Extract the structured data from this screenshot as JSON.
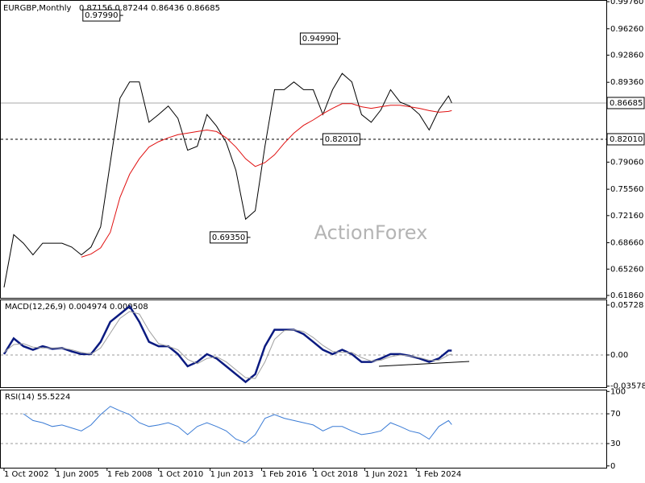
{
  "chart_data": [
    {
      "type": "line",
      "title": "EURGBP,Monthly",
      "subtitle": "0.87156 0.87244 0.86436 0.86685",
      "watermark": "ActionForex",
      "x": [
        "2002-10",
        "2003-04",
        "2003-10",
        "2004-04",
        "2004-10",
        "2005-04",
        "2005-10",
        "2006-04",
        "2006-10",
        "2007-04",
        "2007-10",
        "2008-04",
        "2008-10",
        "2009-04",
        "2009-10",
        "2010-04",
        "2010-10",
        "2011-04",
        "2011-10",
        "2012-04",
        "2012-10",
        "2013-04",
        "2013-10",
        "2014-04",
        "2014-10",
        "2015-04",
        "2015-10",
        "2016-04",
        "2016-10",
        "2017-04",
        "2017-10",
        "2018-04",
        "2018-10",
        "2019-04",
        "2019-10",
        "2020-04",
        "2020-10",
        "2021-04",
        "2021-10",
        "2022-04",
        "2022-10",
        "2023-04",
        "2023-10",
        "2024-04",
        "2024-10",
        "2025-04",
        "2025-10",
        "2025-12"
      ],
      "xlim": [
        "2002-08",
        "2033-12"
      ],
      "series": [
        {
          "color": "#000000",
          "values": [
            0.629,
            0.697,
            0.686,
            0.671,
            0.686,
            0.686,
            0.686,
            0.681,
            0.671,
            0.681,
            0.707,
            0.79,
            0.873,
            0.894,
            0.894,
            0.842,
            0.852,
            0.863,
            0.847,
            0.806,
            0.811,
            0.852,
            0.837,
            0.816,
            0.78,
            0.717,
            0.728,
            0.811,
            0.884,
            0.884,
            0.894,
            0.884,
            0.884,
            0.852,
            0.884,
            0.905,
            0.894,
            0.852,
            0.842,
            0.858,
            0.884,
            0.868,
            0.863,
            0.852,
            0.832,
            0.858,
            0.876,
            0.8669
          ]
        },
        {
          "color": "#e01010",
          "values": [
            null,
            null,
            null,
            null,
            null,
            null,
            null,
            null,
            0.668,
            0.672,
            0.68,
            0.7,
            0.745,
            0.775,
            0.795,
            0.81,
            0.817,
            0.822,
            0.826,
            0.828,
            0.83,
            0.832,
            0.83,
            0.822,
            0.81,
            0.795,
            0.785,
            0.79,
            0.8,
            0.815,
            0.828,
            0.838,
            0.845,
            0.853,
            0.86,
            0.866,
            0.866,
            0.862,
            0.86,
            0.862,
            0.864,
            0.864,
            0.862,
            0.86,
            0.857,
            0.855,
            0.856,
            0.857
          ]
        }
      ],
      "ylim": [
        0.6155,
        0.9987
      ],
      "yticks": [
        {
          "value": 0.9976,
          "label": "0.99760"
        },
        {
          "value": 0.9626,
          "label": "0.96260"
        },
        {
          "value": 0.9286,
          "label": "0.92860"
        },
        {
          "value": 0.8936,
          "label": "0.89360"
        },
        {
          "value": 0.7906,
          "label": "0.79060"
        },
        {
          "value": 0.7556,
          "label": "0.75560"
        },
        {
          "value": 0.7216,
          "label": "0.72160"
        },
        {
          "value": 0.6866,
          "label": "0.68660"
        },
        {
          "value": 0.6526,
          "label": "0.65260"
        },
        {
          "value": 0.6186,
          "label": "0.61860"
        }
      ],
      "reference_lines": [
        {
          "value": 0.86685,
          "label": "0.86685",
          "style": "solid"
        },
        {
          "value": 0.8201,
          "label": "0.82010",
          "style": "dashed"
        }
      ],
      "annotations": [
        {
          "text": "0.97990",
          "x": "2008-12",
          "value": 0.9799
        },
        {
          "text": "0.94990",
          "x": "2020-03",
          "value": 0.9499
        },
        {
          "text": "0.82010",
          "x": "2021-05",
          "value": 0.8201
        },
        {
          "text": "0.69350",
          "x": "2015-07",
          "value": 0.6935
        }
      ]
    },
    {
      "type": "line",
      "title": "MACD(12,26,9) 0.004974 0.000508",
      "x": [
        "2002-10",
        "2003-04",
        "2003-10",
        "2004-04",
        "2004-10",
        "2005-04",
        "2005-10",
        "2006-04",
        "2006-10",
        "2007-04",
        "2007-10",
        "2008-04",
        "2008-10",
        "2009-04",
        "2009-10",
        "2010-04",
        "2010-10",
        "2011-04",
        "2011-10",
        "2012-04",
        "2012-10",
        "2013-04",
        "2013-10",
        "2014-04",
        "2014-10",
        "2015-04",
        "2015-10",
        "2016-04",
        "2016-10",
        "2017-04",
        "2017-10",
        "2018-04",
        "2018-10",
        "2019-04",
        "2019-10",
        "2020-04",
        "2020-10",
        "2021-04",
        "2021-10",
        "2022-04",
        "2022-10",
        "2023-04",
        "2023-10",
        "2024-04",
        "2024-10",
        "2025-04",
        "2025-10",
        "2025-12"
      ],
      "xlim": [
        "2002-08",
        "2033-12"
      ],
      "series": [
        {
          "color": "#0a1a80",
          "values": [
            0.001,
            0.019,
            0.01,
            0.006,
            0.01,
            0.007,
            0.008,
            0.004,
            0.001,
            0.001,
            0.015,
            0.038,
            0.047,
            0.056,
            0.038,
            0.015,
            0.01,
            0.01,
            0.001,
            -0.013,
            -0.008,
            0.001,
            -0.004,
            -0.013,
            -0.022,
            -0.031,
            -0.022,
            0.01,
            0.029,
            0.029,
            0.029,
            0.024,
            0.015,
            0.006,
            0.001,
            0.006,
            0.001,
            -0.008,
            -0.008,
            -0.004,
            0.001,
            0.001,
            -0.001,
            -0.004,
            -0.008,
            -0.004,
            0.005,
            0.005
          ]
        },
        {
          "color": "#a0a0a0",
          "values": [
            0.003,
            0.012,
            0.013,
            0.009,
            0.008,
            0.008,
            0.008,
            0.006,
            0.003,
            0.001,
            0.008,
            0.025,
            0.042,
            0.05,
            0.047,
            0.028,
            0.013,
            0.01,
            0.006,
            -0.005,
            -0.01,
            -0.004,
            -0.002,
            -0.008,
            -0.017,
            -0.026,
            -0.027,
            -0.008,
            0.018,
            0.028,
            0.029,
            0.027,
            0.02,
            0.011,
            0.004,
            0.003,
            0.003,
            -0.003,
            -0.007,
            -0.006,
            -0.002,
            0,
            -0.001,
            -0.003,
            -0.006,
            -0.006,
            0,
            0.001
          ]
        }
      ],
      "ylim": [
        -0.037,
        0.0628
      ],
      "yticks": [
        0.05728,
        {
          "value": 0,
          "label": "0.00"
        },
        -0.035783
      ],
      "reference_lines": [
        {
          "value": 0,
          "style": "dashed"
        }
      ]
    },
    {
      "type": "line",
      "title": "RSI(14) 55.5224",
      "x": [
        "2002-10",
        "2003-04",
        "2003-10",
        "2004-04",
        "2004-10",
        "2005-04",
        "2005-10",
        "2006-04",
        "2006-10",
        "2007-04",
        "2007-10",
        "2008-04",
        "2008-10",
        "2009-04",
        "2009-10",
        "2010-04",
        "2010-10",
        "2011-04",
        "2011-10",
        "2012-04",
        "2012-10",
        "2013-04",
        "2013-10",
        "2014-04",
        "2014-10",
        "2015-04",
        "2015-10",
        "2016-04",
        "2016-10",
        "2017-04",
        "2017-10",
        "2018-04",
        "2018-10",
        "2019-04",
        "2019-10",
        "2020-04",
        "2020-10",
        "2021-04",
        "2021-10",
        "2022-04",
        "2022-10",
        "2023-04",
        "2023-10",
        "2024-04",
        "2024-10",
        "2025-04",
        "2025-10",
        "2025-12"
      ],
      "xlim": [
        "2002-08",
        "2033-12"
      ],
      "series": [
        {
          "color": "#3a7bd5",
          "values": [
            null,
            null,
            70,
            61,
            58,
            53,
            55,
            51,
            47,
            55,
            69,
            80,
            74,
            69,
            58,
            53,
            55,
            58,
            53,
            42,
            53,
            58,
            53,
            47,
            36,
            31,
            42,
            64,
            69,
            64,
            61,
            58,
            55,
            47,
            53,
            53,
            47,
            42,
            44,
            47,
            58,
            53,
            47,
            44,
            36,
            53,
            61,
            55.52
          ]
        }
      ],
      "ylim": [
        -2.4,
        101.4
      ],
      "yticks": [
        100,
        70,
        30,
        0
      ],
      "reference_lines": [
        {
          "value": 70,
          "style": "dashed"
        },
        {
          "value": 30,
          "style": "dashed"
        }
      ],
      "xticks": [
        {
          "value": "2002-10",
          "label": "1 Oct 2002"
        },
        {
          "value": "2005-06",
          "label": "1 Jun 2005"
        },
        {
          "value": "2008-02",
          "label": "1 Feb 2008"
        },
        {
          "value": "2010-10",
          "label": "1 Oct 2010"
        },
        {
          "value": "2013-06",
          "label": "1 Jun 2013"
        },
        {
          "value": "2016-02",
          "label": "1 Feb 2016"
        },
        {
          "value": "2018-10",
          "label": "1 Oct 2018"
        },
        {
          "value": "2021-06",
          "label": "1 Jun 2021"
        },
        {
          "value": "2024-02",
          "label": "1 Feb 2024"
        }
      ]
    }
  ]
}
